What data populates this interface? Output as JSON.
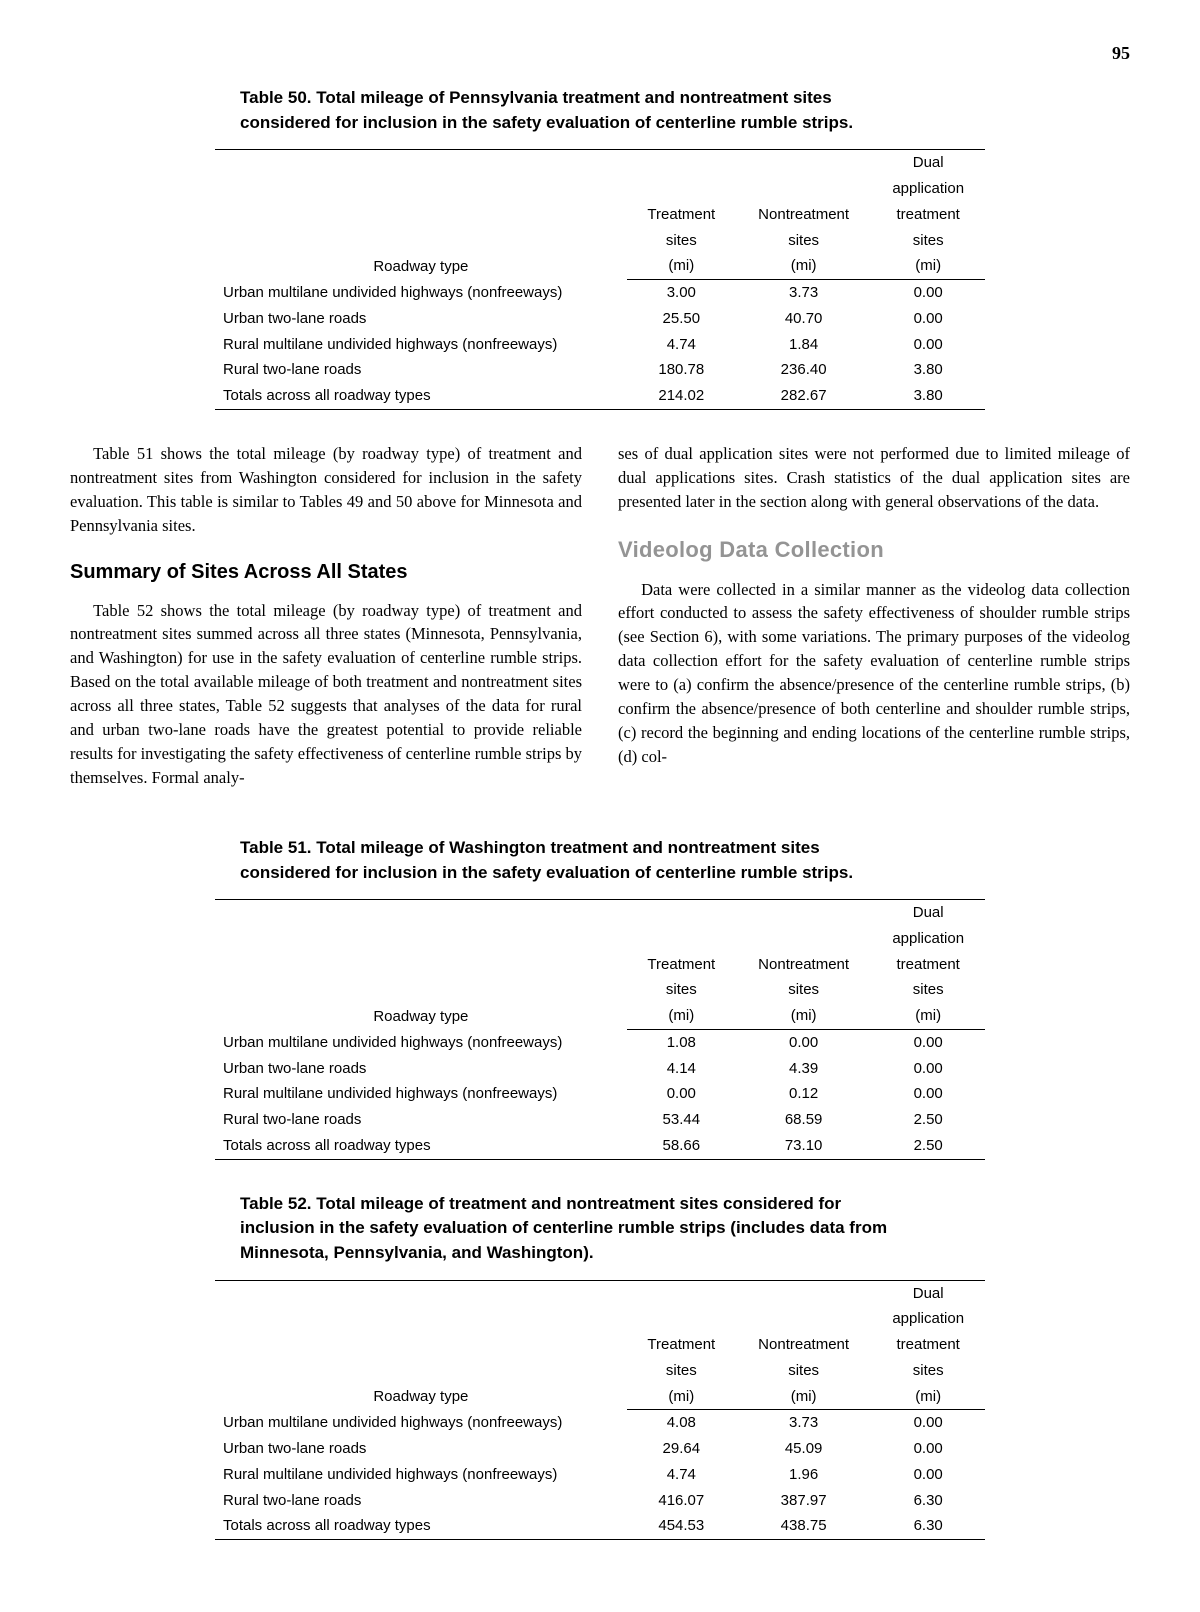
{
  "page_number": "95",
  "table50": {
    "caption_line1": "Table 50.  Total mileage of Pennsylvania treatment and nontreatment sites",
    "caption_line2": "considered for inclusion in the safety evaluation of centerline rumble strips.",
    "headers": {
      "roadway": "Roadway type",
      "treatment_l1": "Treatment",
      "treatment_l2": "sites",
      "treatment_l3": "(mi)",
      "nontreat_l1": "Nontreatment",
      "nontreat_l2": "sites",
      "nontreat_l3": "(mi)",
      "dual_l0": "Dual",
      "dual_l1": "application",
      "dual_l2": "treatment",
      "dual_l3": "sites",
      "dual_l4": "(mi)"
    },
    "rows": [
      {
        "label": "Urban multilane undivided highways (nonfreeways)",
        "t": "3.00",
        "n": "3.73",
        "d": "0.00"
      },
      {
        "label": "Urban two-lane roads",
        "t": "25.50",
        "n": "40.70",
        "d": "0.00"
      },
      {
        "label": "Rural multilane undivided highways (nonfreeways)",
        "t": "4.74",
        "n": "1.84",
        "d": "0.00"
      },
      {
        "label": "Rural two-lane roads",
        "t": "180.78",
        "n": "236.40",
        "d": "3.80"
      },
      {
        "label": "Totals across all roadway types",
        "t": "214.02",
        "n": "282.67",
        "d": "3.80"
      }
    ]
  },
  "body": {
    "left_p1": "Table 51 shows the total mileage (by roadway type) of treatment and nontreatment sites from Washington considered for inclusion in the safety evaluation. This table is similar to Tables 49 and 50 above for Minnesota and Pennsylvania sites.",
    "left_head": "Summary of Sites Across All States",
    "left_p2": "Table 52 shows the total mileage (by roadway type) of treatment and nontreatment sites summed across all three states (Minnesota, Pennsylvania, and Washington) for use in the safety evaluation of centerline rumble strips. Based on the total available mileage of both treatment and nontreatment sites across all three states, Table 52 suggests that analyses of the data for rural and urban two-lane roads have the greatest potential to provide reliable results for investigating the safety effectiveness of centerline rumble strips by themselves. Formal analy-",
    "right_p1": "ses of dual application sites were not performed due to limited mileage of dual applications sites. Crash statistics of the dual application sites are presented later in the section along with general observations of the data.",
    "right_head": "Videolog Data Collection",
    "right_p2": "Data were collected in a similar manner as the videolog data collection effort conducted to assess the safety effectiveness of shoulder rumble strips (see Section 6), with some variations. The primary purposes of the videolog data collection effort for the safety evaluation of centerline rumble strips were to (a) confirm the absence/presence of the centerline rumble strips, (b) confirm the absence/presence of both centerline and shoulder rumble strips, (c) record the beginning and ending locations of the centerline rumble strips, (d) col-"
  },
  "table51": {
    "caption_line1": "Table 51.  Total mileage of Washington treatment and nontreatment sites",
    "caption_line2": "considered for inclusion in the safety evaluation of centerline rumble strips.",
    "rows": [
      {
        "label": "Urban multilane undivided highways (nonfreeways)",
        "t": "1.08",
        "n": "0.00",
        "d": "0.00"
      },
      {
        "label": "Urban two-lane roads",
        "t": "4.14",
        "n": "4.39",
        "d": "0.00"
      },
      {
        "label": "Rural multilane undivided highways (nonfreeways)",
        "t": "0.00",
        "n": "0.12",
        "d": "0.00"
      },
      {
        "label": "Rural two-lane roads",
        "t": "53.44",
        "n": "68.59",
        "d": "2.50"
      },
      {
        "label": "Totals across all roadway types",
        "t": "58.66",
        "n": "73.10",
        "d": "2.50"
      }
    ]
  },
  "table52": {
    "caption_line1": "Table 52.  Total mileage of treatment and nontreatment sites considered for",
    "caption_line2": "inclusion in the safety evaluation of centerline rumble strips (includes data from",
    "caption_line3": "Minnesota, Pennsylvania, and Washington).",
    "rows": [
      {
        "label": "Urban multilane undivided highways (nonfreeways)",
        "t": "4.08",
        "n": "3.73",
        "d": "0.00"
      },
      {
        "label": "Urban two-lane roads",
        "t": "29.64",
        "n": "45.09",
        "d": "0.00"
      },
      {
        "label": "Rural multilane undivided highways (nonfreeways)",
        "t": "4.74",
        "n": "1.96",
        "d": "0.00"
      },
      {
        "label": "Rural two-lane roads",
        "t": "416.07",
        "n": "387.97",
        "d": "6.30"
      },
      {
        "label": "Totals across all roadway types",
        "t": "454.53",
        "n": "438.75",
        "d": "6.30"
      }
    ]
  }
}
